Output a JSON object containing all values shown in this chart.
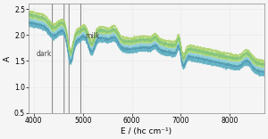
{
  "x_min": 3900,
  "x_max": 8700,
  "y_min": 0.5,
  "y_max": 2.6,
  "xlabel": "E / (hc cm⁻¹)",
  "ylabel": "A",
  "milk_colors": [
    "#8dc66e",
    "#a8d060",
    "#b5d96a",
    "#7ec47a"
  ],
  "dark_colors": [
    "#6ab5c8",
    "#5aaabf",
    "#82c8d2",
    "#70bfd5",
    "#88ccd8",
    "#60b0c0",
    "#9ad0dc",
    "#5098b0"
  ],
  "background": "#f0f0f0",
  "tick_fontsize": 5.5,
  "label_fontsize": 6.5
}
